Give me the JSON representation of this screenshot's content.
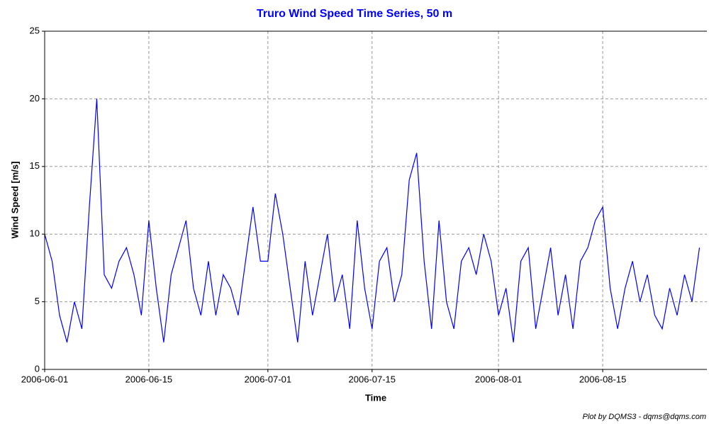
{
  "chart_data": {
    "type": "line",
    "title": "Truro Wind Speed Time Series, 50 m",
    "xlabel": "Time",
    "ylabel": "Wind Speed [m/s]",
    "footer": "Plot by DQMS3 - dqms@dqms.com",
    "color": "#0000ff",
    "grid": true,
    "xlim": [
      "2006-06-01",
      "2006-08-29"
    ],
    "xticks": [
      "2006-06-01",
      "2006-06-15",
      "2006-07-01",
      "2006-07-15",
      "2006-08-01",
      "2006-08-15"
    ],
    "ylim": [
      0,
      25
    ],
    "yticks": [
      0,
      5,
      10,
      15,
      20,
      25
    ],
    "x": [
      "2006-06-01",
      "2006-06-02",
      "2006-06-03",
      "2006-06-04",
      "2006-06-05",
      "2006-06-06",
      "2006-06-07",
      "2006-06-08",
      "2006-06-09",
      "2006-06-10",
      "2006-06-11",
      "2006-06-12",
      "2006-06-13",
      "2006-06-14",
      "2006-06-15",
      "2006-06-16",
      "2006-06-17",
      "2006-06-18",
      "2006-06-19",
      "2006-06-20",
      "2006-06-21",
      "2006-06-22",
      "2006-06-23",
      "2006-06-24",
      "2006-06-25",
      "2006-06-26",
      "2006-06-27",
      "2006-06-28",
      "2006-06-29",
      "2006-06-30",
      "2006-07-01",
      "2006-07-02",
      "2006-07-03",
      "2006-07-04",
      "2006-07-05",
      "2006-07-06",
      "2006-07-07",
      "2006-07-08",
      "2006-07-09",
      "2006-07-10",
      "2006-07-11",
      "2006-07-12",
      "2006-07-13",
      "2006-07-14",
      "2006-07-15",
      "2006-07-16",
      "2006-07-17",
      "2006-07-18",
      "2006-07-19",
      "2006-07-20",
      "2006-07-21",
      "2006-07-22",
      "2006-07-23",
      "2006-07-24",
      "2006-07-25",
      "2006-07-26",
      "2006-07-27",
      "2006-07-28",
      "2006-07-29",
      "2006-07-30",
      "2006-07-31",
      "2006-08-01",
      "2006-08-02",
      "2006-08-03",
      "2006-08-04",
      "2006-08-05",
      "2006-08-06",
      "2006-08-07",
      "2006-08-08",
      "2006-08-09",
      "2006-08-10",
      "2006-08-11",
      "2006-08-12",
      "2006-08-13",
      "2006-08-14",
      "2006-08-15",
      "2006-08-16",
      "2006-08-17",
      "2006-08-18",
      "2006-08-19",
      "2006-08-20",
      "2006-08-21",
      "2006-08-22",
      "2006-08-23",
      "2006-08-24",
      "2006-08-25",
      "2006-08-26",
      "2006-08-27",
      "2006-08-28"
    ],
    "values": [
      10,
      8,
      4,
      2,
      5,
      3,
      12,
      20,
      7,
      6,
      8,
      9,
      7,
      4,
      11,
      6,
      2,
      7,
      9,
      11,
      6,
      4,
      8,
      4,
      7,
      6,
      4,
      8,
      12,
      8,
      8,
      13,
      10,
      6,
      2,
      8,
      4,
      7,
      10,
      5,
      7,
      3,
      11,
      6,
      3,
      8,
      9,
      5,
      7,
      14,
      16,
      8,
      3,
      11,
      5,
      3,
      8,
      9,
      7,
      10,
      8,
      4,
      6,
      2,
      8,
      9,
      3,
      6,
      9,
      4,
      7,
      3,
      8,
      9,
      11,
      12,
      6,
      3,
      6,
      8,
      5,
      7,
      4,
      3,
      6,
      4,
      7,
      5,
      9
    ]
  }
}
